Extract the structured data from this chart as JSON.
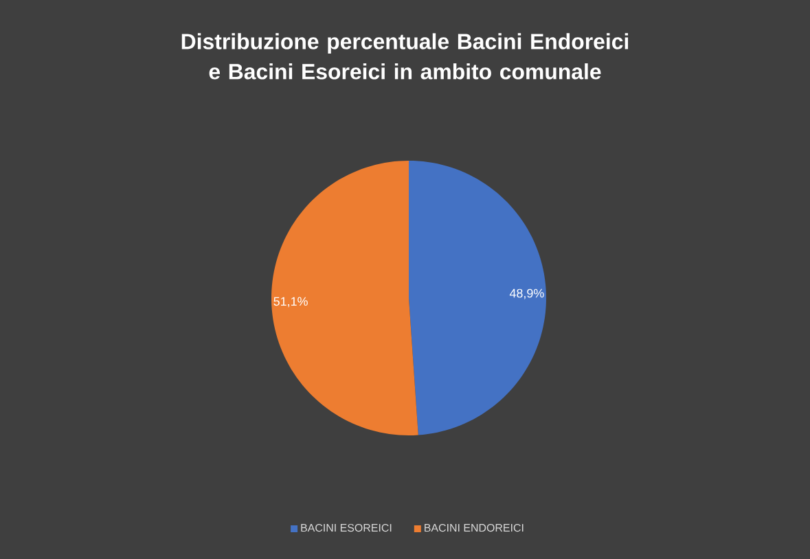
{
  "chart_data": {
    "type": "pie",
    "title": "Distribuzione percentuale Bacini Endoreici e Bacini Esoreici in ambito comunale",
    "categories": [
      "BACINI ESOREICI",
      "BACINI ENDOREICI"
    ],
    "values": [
      48.9,
      51.1
    ],
    "colors": [
      "#4472c4",
      "#ed7d31"
    ],
    "value_labels": [
      "48,9%",
      "51,1%"
    ],
    "legend": "bottom"
  }
}
